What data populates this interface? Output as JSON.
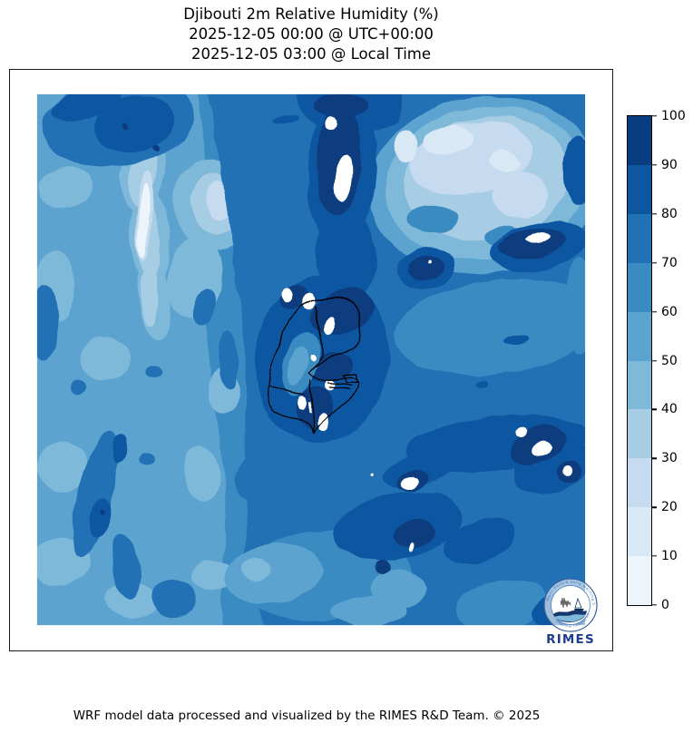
{
  "title": {
    "line1": "Djibouti 2m Relative Humidity (%)",
    "line2": "2025-12-05 00:00 @ UTC+00:00",
    "line3": "2025-12-05 03:00 @ Local Time"
  },
  "footer": {
    "text": "WRF model data processed and visualized by the RIMES R&D Team. © 2025"
  },
  "colorbar": {
    "units": "%",
    "min": 0,
    "max": 100,
    "ticks": [
      0,
      10,
      20,
      30,
      40,
      50,
      60,
      70,
      80,
      90,
      100
    ],
    "band_colors_low_to_high": [
      "#edf5fc",
      "#d9e8f5",
      "#c6dbef",
      "#a6cde4",
      "#7fb9da",
      "#5ba3d0",
      "#3b8bc3",
      "#2171b5",
      "#0d57a1",
      "#083d7f"
    ]
  },
  "map": {
    "region": "Djibouti",
    "variable": "2m Relative Humidity",
    "border_color": "#000000",
    "background": "#ffffff"
  },
  "logo": {
    "wordmark": "RIMES",
    "ring_text_top": "Multi-Hazard Early Warning System",
    "ring_text_bottom": "Regional Integrated",
    "accent": "#1e3c8e"
  },
  "chart_data": {
    "type": "heatmap",
    "title": "Djibouti 2m Relative Humidity (%)",
    "units": "%",
    "colorbar_range": [
      0,
      100
    ],
    "colorbar_ticks": [
      0,
      10,
      20,
      30,
      40,
      50,
      60,
      70,
      80,
      90,
      100
    ],
    "palette": "Blues, 10 discrete bands",
    "qualitative_regions": [
      {
        "area": "top-right (NE quadrant)",
        "humidity_pct": "20-50 (dry pocket)"
      },
      {
        "area": "top-center vertical streak",
        "humidity_pct": "80-100 with saturated white core"
      },
      {
        "area": "central Djibouti (inside admin borders)",
        "humidity_pct": "80-100 with small saturated spots"
      },
      {
        "area": "west / left third",
        "humidity_pct": "40-70 mottled, pale 0-30 band upper-left-center"
      },
      {
        "area": "east and southeast field",
        "humidity_pct": "70-80 with 80-100 patches and white spots"
      },
      {
        "area": "bottom-center band",
        "humidity_pct": "80-100"
      }
    ]
  }
}
